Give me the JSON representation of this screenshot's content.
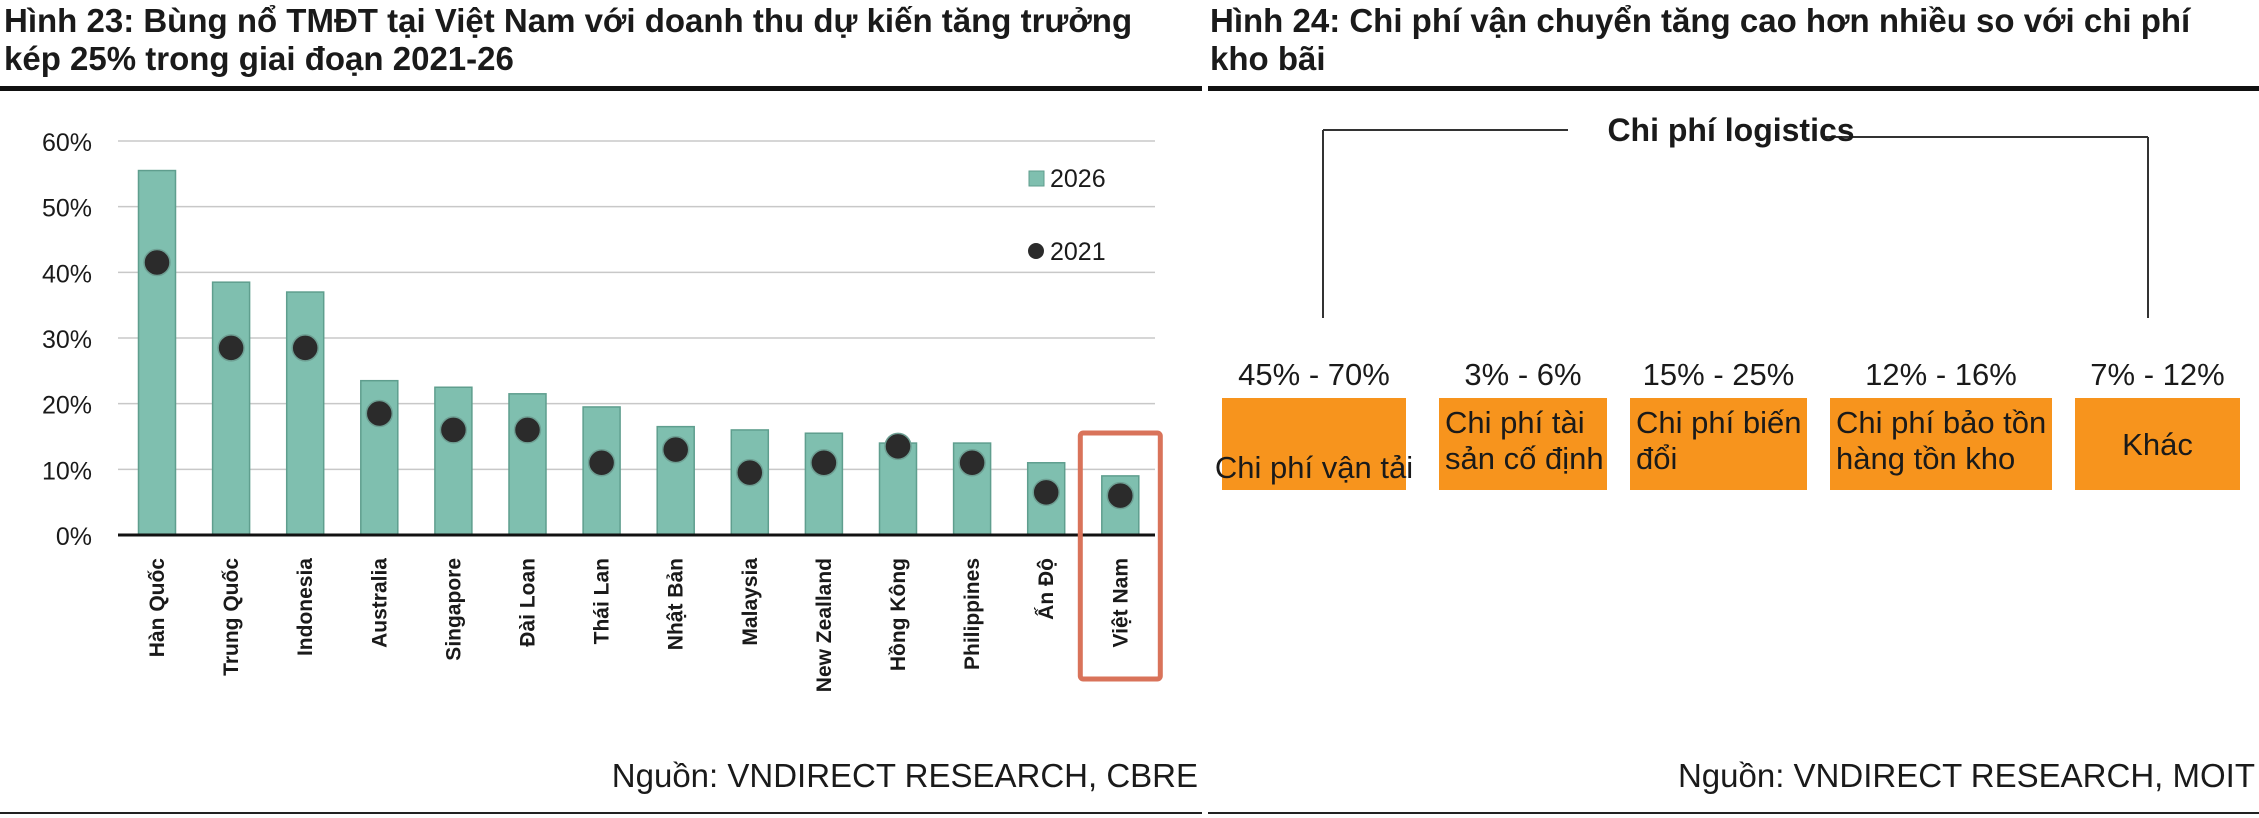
{
  "figure_left": {
    "title_line1": "Hình 23: Bùng nổ TMĐT tại Việt Nam với doanh thu dự kiến tăng trưởng",
    "title_line2": "kép 25% trong giai đoạn 2021-26",
    "source": "Nguồn: VNDIRECT RESEARCH, CBRE"
  },
  "figure_right": {
    "title_line1": "Hình 24: Chi phí vận chuyển tăng cao hơn nhiều so với chi phí",
    "title_line2": "kho bãi",
    "source": "Nguồn: VNDIRECT RESEARCH, MOIT",
    "root_label": "Chi phí logistics",
    "items": [
      {
        "range": "45% - 70%",
        "label_lines": [
          "Chi phí vận tải"
        ],
        "align": "center"
      },
      {
        "range": "3% - 6%",
        "label_lines": [
          "Chi phí tài",
          "sản cố định"
        ],
        "align": "left"
      },
      {
        "range": "15% - 25%",
        "label_lines": [
          "Chi phí biến",
          "đổi"
        ],
        "align": "left"
      },
      {
        "range": "12% - 16%",
        "label_lines": [
          "Chi phí bảo tồn",
          "hàng tồn kho"
        ],
        "align": "left"
      },
      {
        "range": "7% - 12%",
        "label_lines": [
          "Khác"
        ],
        "align": "center"
      }
    ],
    "colors": {
      "box": "#f7941d",
      "line": "#333333"
    }
  },
  "chart_data": {
    "type": "bar",
    "categories": [
      "Hàn Quốc",
      "Trung Quốc",
      "Indonesia",
      "Australia",
      "Singapore",
      "Đài Loan",
      "Thái Lan",
      "Nhật Bản",
      "Malaysia",
      "New Zealland",
      "Hồng Kông",
      "Philippines",
      "Ấn Độ",
      "Việt Nam"
    ],
    "series": [
      {
        "name": "2026",
        "kind": "bar",
        "values": [
          55.5,
          38.5,
          37,
          23.5,
          22.5,
          21.5,
          19.5,
          16.5,
          16,
          15.5,
          14,
          14,
          11,
          9
        ],
        "color": "#7fbfaf"
      },
      {
        "name": "2021",
        "kind": "dot",
        "values": [
          41.5,
          28.5,
          28.5,
          18.5,
          16,
          16,
          11,
          13,
          9.5,
          11,
          13.5,
          11,
          6.5,
          6
        ],
        "color": "#2b2b2b"
      }
    ],
    "yticks": [
      "0%",
      "10%",
      "20%",
      "30%",
      "40%",
      "50%",
      "60%"
    ],
    "ylim": [
      0,
      60
    ],
    "grid": true,
    "legend": "top-right",
    "highlight_category": "Việt Nam",
    "highlight_color": "#d9735a",
    "title": "",
    "xlabel": "",
    "ylabel": ""
  }
}
